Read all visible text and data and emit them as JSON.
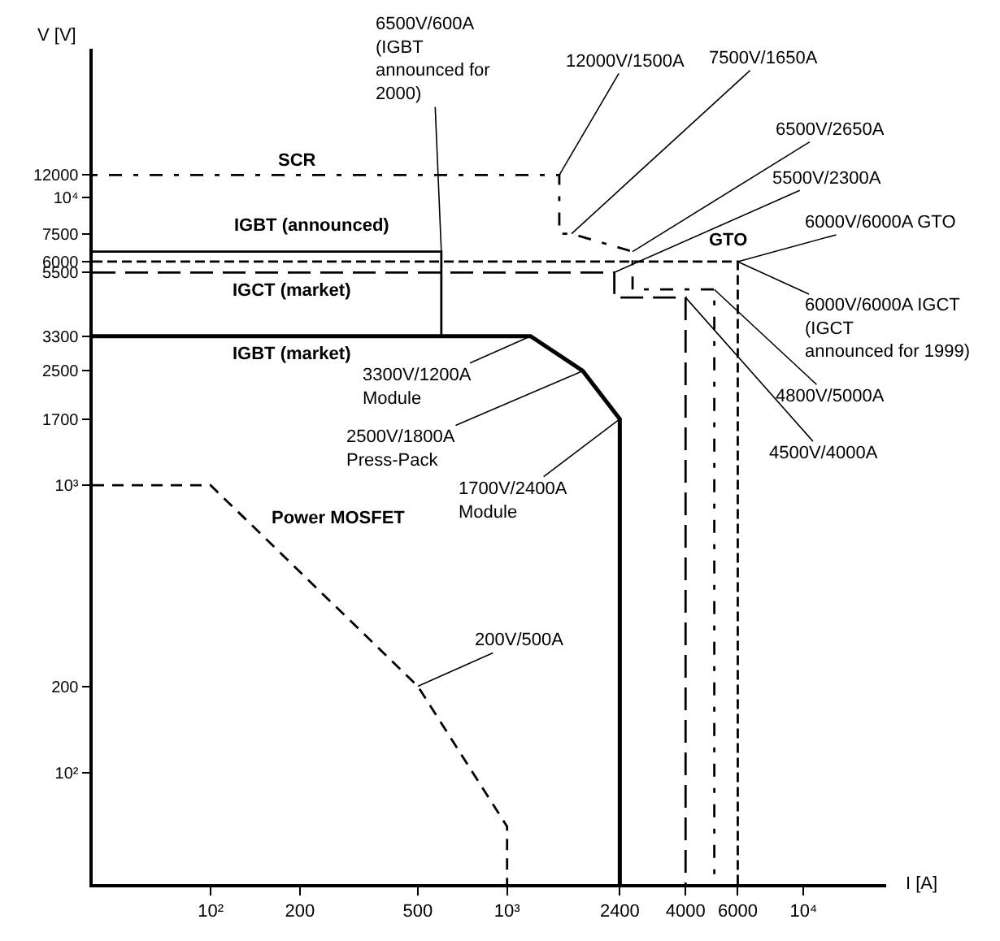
{
  "chart_data": {
    "type": "line",
    "xlabel": "I [A]",
    "ylabel": "V [V]",
    "log": "xy",
    "legend": false,
    "xlim": [
      40,
      19000
    ],
    "ylim": [
      41,
      33000
    ],
    "xticks": [
      {
        "value": 100,
        "label": "10²"
      },
      200,
      500,
      {
        "value": 1000,
        "label": "10³"
      },
      2400,
      4000,
      6000,
      {
        "value": 10000,
        "label": "10⁴"
      }
    ],
    "yticks": [
      {
        "value": 100,
        "label": "10²"
      },
      200,
      {
        "value": 1000,
        "label": "10³"
      },
      1700,
      2500,
      3300,
      5500,
      6000,
      7500,
      {
        "value": 10000,
        "label": "10⁴"
      },
      12000
    ],
    "series": [
      {
        "name": "SCR",
        "color": "#000000",
        "line_style": "dotted",
        "x": [
          40,
          1500,
          1500,
          1650,
          2650,
          2650,
          5000,
          5000
        ],
        "values": [
          12000,
          12000,
          7500,
          7500,
          6500,
          4800,
          4800,
          41
        ]
      },
      {
        "name": "IGBT (announced)",
        "color": "#000000",
        "line_style": "solid",
        "x": [
          40,
          600,
          600
        ],
        "values": [
          6500,
          6500,
          3300
        ]
      },
      {
        "name": "GTO",
        "color": "#000000",
        "line_style": "dashed",
        "x": [
          40,
          6000,
          6000
        ],
        "values": [
          6000,
          6000,
          41
        ]
      },
      {
        "name": "IGCT (market)",
        "color": "#000000",
        "line_style": "dashed",
        "x": [
          40,
          2300,
          2300,
          4000,
          4000
        ],
        "values": [
          5500,
          5500,
          4500,
          4500,
          41
        ]
      },
      {
        "name": "IGBT (market)",
        "color": "#000000",
        "line_style": "solid",
        "x": [
          40,
          1200,
          1800,
          2400,
          2400
        ],
        "values": [
          3300,
          3300,
          2500,
          1700,
          41
        ]
      },
      {
        "name": "Power MOSFET",
        "color": "#000000",
        "line_style": "dashed",
        "x": [
          40,
          100,
          500,
          1000,
          1000
        ],
        "values": [
          1000,
          1000,
          200,
          65,
          41
        ]
      }
    ],
    "annotations": [
      {
        "text": "6500V/600A\n(IGBT\nannounced for\n2000)",
        "x": 600,
        "y": 6500
      },
      {
        "text": "12000V/1500A",
        "x": 1500,
        "y": 12000
      },
      {
        "text": "7500V/1650A",
        "x": 1650,
        "y": 7500
      },
      {
        "text": "6500V/2650A",
        "x": 2650,
        "y": 6500
      },
      {
        "text": "5500V/2300A",
        "x": 2300,
        "y": 5500
      },
      {
        "text": "6000V/6000A GTO",
        "x": 6000,
        "y": 6000
      },
      {
        "text": "6000V/6000A IGCT\n(IGCT\nannounced for 1999)",
        "x": 6000,
        "y": 6000
      },
      {
        "text": "4800V/5000A",
        "x": 5000,
        "y": 4800
      },
      {
        "text": "4500V/4000A",
        "x": 4000,
        "y": 4500
      },
      {
        "text": "3300V/1200A\nModule",
        "x": 1200,
        "y": 3300
      },
      {
        "text": "2500V/1800A\nPress-Pack",
        "x": 1800,
        "y": 2500
      },
      {
        "text": "1700V/2400A\nModule",
        "x": 2400,
        "y": 1700
      },
      {
        "text": "200V/500A",
        "x": 500,
        "y": 200
      }
    ]
  }
}
